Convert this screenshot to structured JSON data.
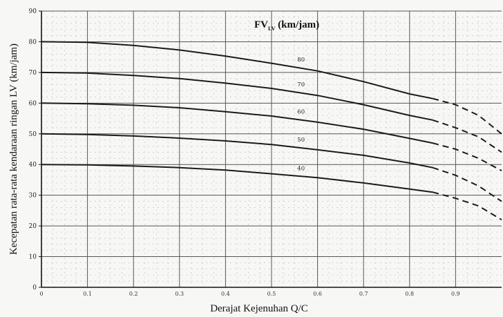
{
  "chart_data": {
    "type": "line",
    "xlabel": "Derajat Kejenuhan Q/C",
    "ylabel": "Kecepatan rata-rata kendaraan ringan LV (km/jam)",
    "legend_title": {
      "main": "FV",
      "sub": "LV",
      "unit": " (km/jam)"
    },
    "xlim": [
      0,
      1.0
    ],
    "ylim": [
      0,
      90
    ],
    "x_ticks": [
      "0",
      "0.1",
      "0.2",
      "0.3",
      "0.4",
      "0.5",
      "0.6",
      "0.7",
      "0.8",
      "0.9"
    ],
    "y_ticks": [
      "0",
      "10",
      "20",
      "30",
      "40",
      "50",
      "60",
      "70",
      "80",
      "90"
    ],
    "grid": true,
    "series": [
      {
        "name": "80",
        "solid": [
          [
            0,
            80
          ],
          [
            0.1,
            79.8
          ],
          [
            0.2,
            78.8
          ],
          [
            0.3,
            77.3
          ],
          [
            0.4,
            75.3
          ],
          [
            0.5,
            73
          ],
          [
            0.6,
            70.5
          ],
          [
            0.7,
            67
          ],
          [
            0.8,
            63
          ],
          [
            0.85,
            61.5
          ]
        ],
        "dashed": [
          [
            0.85,
            61.5
          ],
          [
            0.9,
            59.5
          ],
          [
            0.95,
            56
          ],
          [
            1.0,
            50
          ]
        ]
      },
      {
        "name": "70",
        "solid": [
          [
            0,
            70
          ],
          [
            0.1,
            69.8
          ],
          [
            0.2,
            69
          ],
          [
            0.3,
            68
          ],
          [
            0.4,
            66.5
          ],
          [
            0.5,
            64.8
          ],
          [
            0.6,
            62.5
          ],
          [
            0.7,
            59.5
          ],
          [
            0.8,
            56
          ],
          [
            0.85,
            54.5
          ]
        ],
        "dashed": [
          [
            0.85,
            54.5
          ],
          [
            0.9,
            52
          ],
          [
            0.95,
            49
          ],
          [
            1.0,
            44
          ]
        ]
      },
      {
        "name": "60",
        "solid": [
          [
            0,
            60
          ],
          [
            0.1,
            59.8
          ],
          [
            0.2,
            59.3
          ],
          [
            0.3,
            58.5
          ],
          [
            0.4,
            57.2
          ],
          [
            0.5,
            55.8
          ],
          [
            0.6,
            53.8
          ],
          [
            0.7,
            51.5
          ],
          [
            0.8,
            48.5
          ],
          [
            0.85,
            47
          ]
        ],
        "dashed": [
          [
            0.85,
            47
          ],
          [
            0.9,
            45
          ],
          [
            0.95,
            42
          ],
          [
            1.0,
            38
          ]
        ]
      },
      {
        "name": "50",
        "solid": [
          [
            0,
            50
          ],
          [
            0.1,
            49.8
          ],
          [
            0.2,
            49.3
          ],
          [
            0.3,
            48.6
          ],
          [
            0.4,
            47.7
          ],
          [
            0.5,
            46.5
          ],
          [
            0.6,
            44.8
          ],
          [
            0.7,
            43
          ],
          [
            0.8,
            40.5
          ],
          [
            0.85,
            39
          ]
        ],
        "dashed": [
          [
            0.85,
            39
          ],
          [
            0.9,
            36.5
          ],
          [
            0.95,
            33
          ],
          [
            1.0,
            28
          ]
        ]
      },
      {
        "name": "40",
        "solid": [
          [
            0,
            40
          ],
          [
            0.1,
            39.9
          ],
          [
            0.2,
            39.5
          ],
          [
            0.3,
            39
          ],
          [
            0.4,
            38.2
          ],
          [
            0.5,
            37
          ],
          [
            0.6,
            35.7
          ],
          [
            0.7,
            34
          ],
          [
            0.8,
            32
          ],
          [
            0.85,
            31
          ]
        ],
        "dashed": [
          [
            0.85,
            31
          ],
          [
            0.9,
            29
          ],
          [
            0.95,
            26.5
          ],
          [
            1.0,
            22
          ]
        ]
      }
    ],
    "series_label_x": 0.55
  }
}
